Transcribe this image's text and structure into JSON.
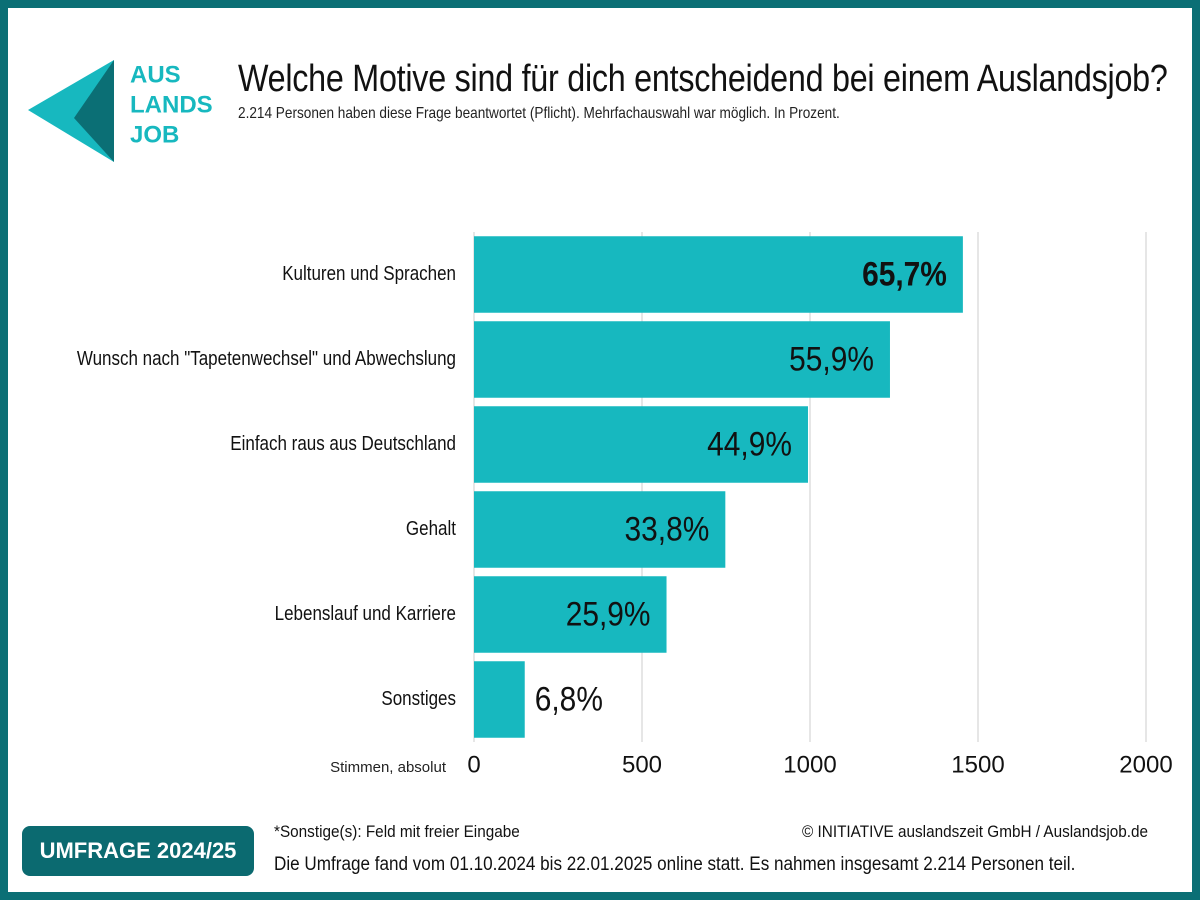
{
  "logo": {
    "lines": [
      "AUS",
      "LANDS",
      "JOB"
    ]
  },
  "chart_data": {
    "type": "bar",
    "orientation": "horizontal",
    "title": "Welche Motive sind für dich entscheidend bei einem Auslandsjob?",
    "subtitle": "2.214 Personen haben diese Frage beantwortet (Pflicht). Mehrfachauswahl war möglich. In Prozent.",
    "x_label": "Stimmen, absolut",
    "categories": [
      "Kulturen und Sprachen",
      "Wunsch nach \"Tapetenwechsel\" und Abwechslung",
      "Einfach raus aus Deutschland",
      "Gehalt",
      "Lebenslauf und Karriere",
      "Sonstiges"
    ],
    "values": [
      1455,
      1238,
      994,
      748,
      573,
      151
    ],
    "value_labels": [
      "65,7%",
      "55,9%",
      "44,9%",
      "33,8%",
      "25,9%",
      "6,8%"
    ],
    "color": "#17b8bf",
    "xlim": [
      0,
      2000
    ],
    "xticks": [
      0,
      500,
      1000,
      1500,
      2000
    ],
    "grid": true
  },
  "footer": {
    "note": "*Sonstige(s): Feld mit freier Eingabe",
    "copyright": "© INITIATIVE auslandszeit GmbH / Auslandsjob.de",
    "info": "Die Umfrage fand vom 01.10.2024 bis 22.01.2025 online statt. Es nahmen insgesamt 2.214 Personen teil.",
    "badge": "UMFRAGE 2024/25"
  }
}
